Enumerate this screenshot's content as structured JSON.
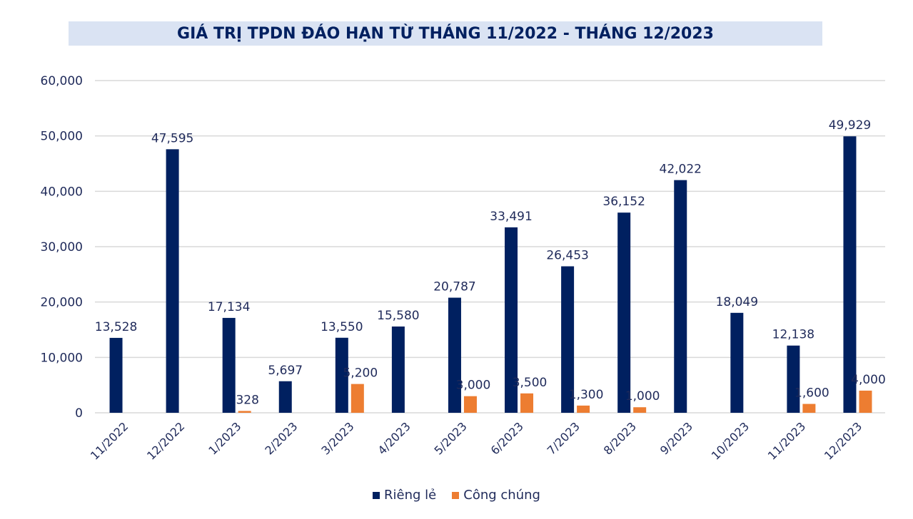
{
  "chart_data": {
    "type": "bar",
    "title": "GIÁ TRỊ TPDN ĐÁO HẠN TỪ THÁNG 11/2022 - THÁNG 12/2023",
    "xlabel": "",
    "ylabel": "",
    "ylim": [
      0,
      60000
    ],
    "yticks": [
      0,
      10000,
      20000,
      30000,
      40000,
      50000,
      60000
    ],
    "ytick_labels": [
      "0",
      "10,000",
      "20,000",
      "30,000",
      "40,000",
      "50,000",
      "60,000"
    ],
    "grid": true,
    "legend_position": "bottom",
    "categories": [
      "11/2022",
      "12/2022",
      "1/2023",
      "2/2023",
      "3/2023",
      "4/2023",
      "5/2023",
      "6/2023",
      "7/2023",
      "8/2023",
      "9/2023",
      "10/2023",
      "11/2023",
      "12/2023"
    ],
    "series": [
      {
        "name": "Riêng lẻ",
        "color": "#002060",
        "values": [
          13528,
          47595,
          17134,
          5697,
          13550,
          15580,
          20787,
          33491,
          26453,
          36152,
          42022,
          18049,
          12138,
          49929
        ],
        "labels": [
          "13,528",
          "47,595",
          "17,134",
          "5,697",
          "13,550",
          "15,580",
          "20,787",
          "33,491",
          "26,453",
          "36,152",
          "42,022",
          "18,049",
          "12,138",
          "49,929"
        ]
      },
      {
        "name": "Công chúng",
        "color": "#ed7d31",
        "values": [
          null,
          null,
          328,
          null,
          5200,
          null,
          3000,
          3500,
          1300,
          1000,
          null,
          null,
          1600,
          4000
        ],
        "labels": [
          null,
          null,
          "328",
          null,
          "5,200",
          null,
          "3,000",
          "3,500",
          "1,300",
          "1,000",
          null,
          null,
          "1,600",
          "4,000"
        ]
      }
    ]
  }
}
